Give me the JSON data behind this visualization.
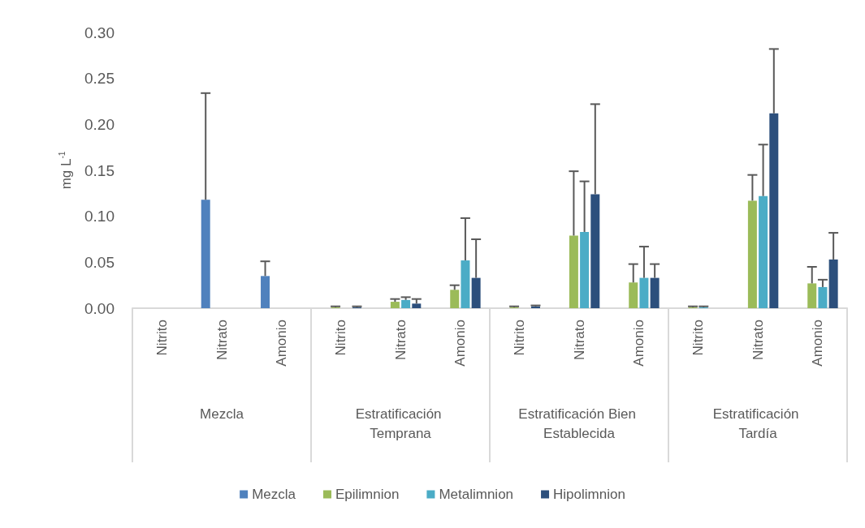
{
  "chart_data": {
    "type": "bar",
    "ylabel": "mg L$^{-1}$",
    "categories": [
      "Nitrito",
      "Nitrato",
      "Amonio",
      "Nitrito",
      "Nitrato",
      "Amonio",
      "Nitrito",
      "Nitrato",
      "Amonio",
      "Nitrito",
      "Nitrato",
      "Amonio"
    ],
    "annotations": [
      "Mezcla",
      "Estratificación Temprana",
      "Estratificación Bien Establecida",
      "Estratificación Tardía"
    ],
    "series": [
      {
        "name": "Mezcla",
        "color": "#4f81bd",
        "values": [
          null,
          0.118,
          0.035,
          null,
          null,
          null,
          null,
          null,
          null,
          null,
          null,
          null
        ],
        "errors": [
          null,
          [
            0.118,
            0.234
          ],
          [
            0.035,
            0.051
          ],
          null,
          null,
          null,
          null,
          null,
          null,
          null,
          null,
          null
        ]
      },
      {
        "name": "Epilimnion",
        "color": "#9bbb59",
        "values": [
          null,
          null,
          null,
          0.001,
          0.007,
          0.02,
          0.001,
          0.079,
          0.028,
          0.001,
          0.117,
          0.027
        ],
        "errors": [
          null,
          null,
          null,
          [
            0.001,
            0.002
          ],
          [
            0.007,
            0.01
          ],
          [
            0.02,
            0.025
          ],
          [
            0.001,
            0.002
          ],
          [
            0.079,
            0.149
          ],
          [
            0.028,
            0.048
          ],
          [
            0.001,
            0.002
          ],
          [
            0.117,
            0.145
          ],
          [
            0.027,
            0.045
          ]
        ]
      },
      {
        "name": "Metalimnion",
        "color": "#4bacc6",
        "values": [
          null,
          null,
          null,
          null,
          0.009,
          0.052,
          null,
          0.083,
          0.033,
          0.001,
          0.122,
          0.023
        ],
        "errors": [
          null,
          null,
          null,
          null,
          [
            0.009,
            0.012
          ],
          [
            0.052,
            0.098
          ],
          null,
          [
            0.083,
            0.138
          ],
          [
            0.033,
            0.067
          ],
          [
            0.001,
            0.002
          ],
          [
            0.122,
            0.178
          ],
          [
            0.023,
            0.031
          ]
        ]
      },
      {
        "name": "Hipolimnion",
        "color": "#2c4f7c",
        "values": [
          null,
          null,
          null,
          0.001,
          0.005,
          0.033,
          0.002,
          0.124,
          0.033,
          null,
          0.212,
          0.053
        ],
        "errors": [
          null,
          null,
          null,
          [
            0.001,
            0.002
          ],
          [
            0.005,
            0.01
          ],
          [
            0.033,
            0.075
          ],
          [
            0.002,
            0.003
          ],
          [
            0.124,
            0.222
          ],
          [
            0.033,
            0.048
          ],
          null,
          [
            0.212,
            0.282
          ],
          [
            0.053,
            0.082
          ]
        ]
      }
    ],
    "ylim": [
      0,
      0.3
    ],
    "yticks": [
      {
        "value": 0,
        "label": "0.00"
      },
      {
        "value": 0.05,
        "label": "0.05"
      },
      {
        "value": 0.1,
        "label": "0.10"
      },
      {
        "value": 0.15,
        "label": "0.15"
      },
      {
        "value": 0.2,
        "label": "0.20"
      },
      {
        "value": 0.25,
        "label": "0.25"
      },
      {
        "value": 0.3,
        "label": "0.30"
      }
    ],
    "grid": false,
    "legend": "bottom"
  }
}
